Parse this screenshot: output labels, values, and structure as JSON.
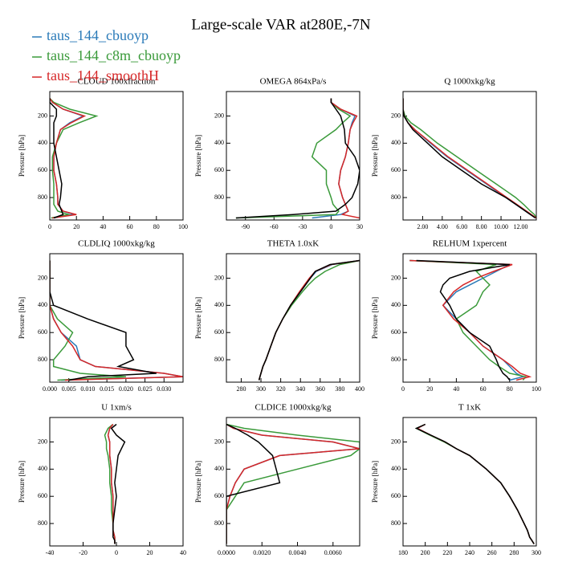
{
  "title": "Large-scale VAR at280E,-7N",
  "chart_data": [
    {
      "type": "line",
      "title": "CLOUD  100xfraction",
      "ylabel": "Pressure [hPa]",
      "y": [
        70,
        100,
        150,
        200,
        250,
        300,
        400,
        500,
        600,
        700,
        800,
        850,
        900,
        925,
        950
      ],
      "ylim": [
        965,
        20
      ],
      "yticks": [
        200,
        400,
        600,
        800
      ],
      "xlim": [
        0,
        100
      ],
      "xticks": [
        0,
        20,
        40,
        60,
        80,
        100
      ],
      "series": [
        {
          "name": "taus_144_cbuoyp",
          "color": "#2a7ab8",
          "values": [
            0,
            2,
            10,
            25,
            15,
            8,
            5,
            3,
            3,
            5,
            6,
            6,
            10,
            18,
            2
          ]
        },
        {
          "name": "taus_144_c8m_cbuoyp",
          "color": "#3a9a3a",
          "values": [
            0,
            3,
            15,
            35,
            22,
            10,
            5,
            2,
            2,
            3,
            3,
            3,
            6,
            14,
            1
          ]
        },
        {
          "name": "taus_144_smoothH",
          "color": "#d62728",
          "values": [
            0,
            2,
            10,
            26,
            16,
            8,
            5,
            3,
            3,
            5,
            6,
            6,
            10,
            20,
            2
          ]
        },
        {
          "color": "#000000",
          "values": [
            0,
            0,
            5,
            5,
            3,
            3,
            3,
            5,
            7,
            9,
            8,
            7,
            9,
            10,
            3
          ]
        }
      ]
    },
    {
      "type": "line",
      "title": "OMEGA  864xPa/s",
      "ylabel": "Pressure [hPa]",
      "y": [
        70,
        100,
        150,
        200,
        250,
        300,
        400,
        500,
        600,
        700,
        800,
        850,
        900,
        925,
        950
      ],
      "ylim": [
        965,
        20
      ],
      "yticks": [
        200,
        400,
        600,
        800
      ],
      "xlim": [
        -110,
        30
      ],
      "xticks": [
        -90,
        -60,
        -30,
        0,
        30
      ],
      "series": [
        {
          "color": "#2a7ab8",
          "values": [
            0,
            0,
            10,
            25,
            22,
            20,
            18,
            15,
            10,
            8,
            12,
            15,
            18,
            10,
            -20
          ]
        },
        {
          "color": "#3a9a3a",
          "values": [
            0,
            0,
            8,
            20,
            12,
            5,
            -15,
            -20,
            -5,
            -5,
            0,
            2,
            8,
            5,
            -100
          ]
        },
        {
          "color": "#d62728",
          "values": [
            0,
            0,
            10,
            27,
            23,
            20,
            18,
            15,
            10,
            8,
            12,
            15,
            18,
            12,
            30
          ]
        },
        {
          "color": "#000000",
          "values": [
            0,
            0,
            5,
            10,
            12,
            14,
            15,
            25,
            30,
            28,
            22,
            15,
            5,
            -40,
            -100
          ]
        }
      ]
    },
    {
      "type": "line",
      "title": "Q  1000xkg/kg",
      "ylabel": "Pressure [hPa]",
      "y": [
        70,
        100,
        150,
        200,
        250,
        300,
        400,
        500,
        600,
        700,
        800,
        850,
        900,
        925,
        950
      ],
      "ylim": [
        965,
        20
      ],
      "yticks": [
        200,
        400,
        600,
        800
      ],
      "xlim": [
        0,
        13.6
      ],
      "xticks": [
        {
          "value": 2,
          "label": "2.00"
        },
        {
          "value": 4,
          "label": "4.00"
        },
        {
          "value": 6,
          "label": "6.00"
        },
        {
          "value": 8,
          "label": "8.00"
        },
        {
          "value": 10,
          "label": "10.00"
        },
        {
          "value": 12,
          "label": "12.00"
        }
      ],
      "series": [
        {
          "color": "#2a7ab8",
          "values": [
            0,
            0,
            0,
            0.1,
            0.5,
            1.2,
            2.8,
            4.5,
            6.5,
            8.5,
            10.5,
            11.5,
            12.5,
            13,
            13.6
          ]
        },
        {
          "color": "#3a9a3a",
          "values": [
            0,
            0,
            0,
            0.2,
            0.8,
            1.8,
            3.5,
            5.5,
            7.5,
            9.5,
            11.5,
            12.3,
            13,
            13.4,
            13.6
          ]
        },
        {
          "color": "#d62728",
          "values": [
            0,
            0,
            0,
            0.1,
            0.5,
            1.2,
            2.9,
            4.6,
            6.6,
            8.6,
            10.6,
            11.6,
            12.6,
            13.1,
            13.6
          ]
        },
        {
          "color": "#000000",
          "values": [
            0,
            0,
            0,
            0.1,
            0.5,
            1,
            2.5,
            4,
            6,
            8,
            10.5,
            11.5,
            12.5,
            13,
            13.5
          ]
        }
      ]
    },
    {
      "type": "line",
      "title": "CLDLIQ  1000xkg/kg",
      "ylabel": "Pressure [hPa]",
      "y": [
        70,
        100,
        150,
        200,
        250,
        300,
        400,
        500,
        600,
        700,
        800,
        850,
        900,
        925,
        950
      ],
      "ylim": [
        965,
        20
      ],
      "yticks": [
        200,
        400,
        600,
        800
      ],
      "xlim": [
        0,
        0.035
      ],
      "xticks": [
        {
          "value": 0,
          "label": "0.000"
        },
        {
          "value": 0.005,
          "label": "0.005"
        },
        {
          "value": 0.01,
          "label": "0.010"
        },
        {
          "value": 0.015,
          "label": "0.015"
        },
        {
          "value": 0.02,
          "label": "0.020"
        },
        {
          "value": 0.025,
          "label": "0.025"
        },
        {
          "value": 0.03,
          "label": "0.030"
        }
      ],
      "series": [
        {
          "color": "#2a7ab8",
          "values": [
            0,
            0,
            0,
            0,
            0,
            0,
            0,
            0.001,
            0.003,
            0.007,
            0.008,
            0.012,
            0.03,
            0.035,
            0.003
          ]
        },
        {
          "color": "#3a9a3a",
          "values": [
            0,
            0,
            0,
            0,
            0,
            0,
            0,
            0.002,
            0.006,
            0.004,
            0.001,
            0.001,
            0.008,
            0.02,
            0.002
          ]
        },
        {
          "color": "#d62728",
          "values": [
            0,
            0,
            0,
            0,
            0,
            0,
            0,
            0.001,
            0.003,
            0.006,
            0.008,
            0.012,
            0.03,
            0.035,
            0.004
          ]
        },
        {
          "color": "#000000",
          "values": [
            0,
            0,
            0,
            0,
            0,
            0,
            0.001,
            0.01,
            0.02,
            0.02,
            0.022,
            0.018,
            0.028,
            0.01,
            0.005
          ]
        }
      ]
    },
    {
      "type": "line",
      "title": "THETA  1.0xK",
      "ylabel": "Pressure [hPa]",
      "y": [
        70,
        100,
        150,
        200,
        250,
        300,
        400,
        500,
        600,
        700,
        800,
        850,
        900,
        925,
        950
      ],
      "ylim": [
        965,
        20
      ],
      "yticks": [
        200,
        400,
        600,
        800
      ],
      "xlim": [
        265,
        400
      ],
      "xticks": [
        280,
        300,
        320,
        340,
        360,
        380,
        400
      ],
      "series": [
        {
          "color": "#2a7ab8",
          "values": [
            400,
            372,
            356,
            350,
            345,
            340,
            330,
            322,
            315,
            310,
            305,
            302,
            300,
            299,
            298
          ]
        },
        {
          "color": "#3a9a3a",
          "values": [
            400,
            380,
            365,
            355,
            348,
            342,
            331,
            322,
            315,
            310,
            305,
            302,
            300,
            299,
            298
          ]
        },
        {
          "color": "#d62728",
          "values": [
            400,
            371,
            355,
            349,
            344,
            339,
            330,
            322,
            315,
            310,
            305,
            302,
            300,
            299,
            298
          ]
        },
        {
          "color": "#000000",
          "values": [
            400,
            370,
            355,
            350,
            345,
            340,
            330,
            322,
            315,
            310,
            305,
            302,
            300,
            299,
            298
          ]
        }
      ]
    },
    {
      "type": "line",
      "title": "RELHUM  1xpercent",
      "ylabel": "Pressure [hPa]",
      "y": [
        70,
        100,
        150,
        200,
        250,
        300,
        400,
        500,
        600,
        700,
        800,
        850,
        900,
        925,
        950
      ],
      "ylim": [
        965,
        20
      ],
      "yticks": [
        200,
        400,
        600,
        800
      ],
      "xlim": [
        0,
        100
      ],
      "xticks": [
        0,
        20,
        40,
        60,
        80,
        100
      ],
      "series": [
        {
          "color": "#2a7ab8",
          "values": [
            5,
            80,
            70,
            60,
            50,
            40,
            30,
            40,
            50,
            60,
            75,
            80,
            85,
            90,
            80
          ]
        },
        {
          "color": "#3a9a3a",
          "values": [
            5,
            70,
            55,
            60,
            65,
            60,
            55,
            40,
            45,
            55,
            65,
            72,
            80,
            92,
            90
          ]
        },
        {
          "color": "#d62728",
          "values": [
            5,
            82,
            68,
            55,
            45,
            38,
            30,
            38,
            50,
            60,
            75,
            82,
            88,
            95,
            85
          ]
        },
        {
          "color": "#000000",
          "values": [
            10,
            80,
            50,
            35,
            30,
            28,
            35,
            40,
            50,
            65,
            70,
            72,
            75,
            78,
            80
          ]
        }
      ]
    },
    {
      "type": "line",
      "title": "U  1xm/s",
      "ylabel": "Pressure [hPa]",
      "y": [
        70,
        100,
        150,
        200,
        250,
        300,
        400,
        500,
        600,
        700,
        800,
        850,
        900,
        925,
        950
      ],
      "ylim": [
        965,
        20
      ],
      "yticks": [
        200,
        400,
        600,
        800
      ],
      "xlim": [
        -40,
        40
      ],
      "xticks": [
        -40,
        -20,
        0,
        20,
        40
      ],
      "series": [
        {
          "color": "#2a7ab8",
          "values": [
            -2,
            -4,
            -5,
            -4,
            -4,
            -4,
            -3,
            -3,
            -2,
            -2,
            -2,
            -2,
            -1,
            -1,
            -1
          ]
        },
        {
          "color": "#3a9a3a",
          "values": [
            -2,
            -5,
            -7,
            -6,
            -6,
            -5,
            -4,
            -4,
            -3,
            -3,
            -2,
            -2,
            -1,
            -1,
            -1
          ]
        },
        {
          "color": "#d62728",
          "values": [
            -2,
            -4,
            -5,
            -4,
            -4,
            -4,
            -3,
            -3,
            -2,
            -2,
            -2,
            -2,
            -1,
            -1,
            -1
          ]
        },
        {
          "color": "#000000",
          "values": [
            0,
            -3,
            0,
            5,
            3,
            1,
            0,
            -1,
            0,
            -1,
            -2,
            -2,
            -2,
            -1,
            -1
          ]
        }
      ]
    },
    {
      "type": "line",
      "title": "CLDICE  1000xkg/kg",
      "ylabel": "Pressure [hPa]",
      "y": [
        70,
        100,
        150,
        200,
        250,
        300,
        400,
        500,
        600,
        700,
        800,
        850,
        900,
        925,
        950
      ],
      "ylim": [
        965,
        20
      ],
      "yticks": [
        200,
        400,
        600,
        800
      ],
      "xlim": [
        0,
        0.0075
      ],
      "xticks": [
        {
          "value": 0,
          "label": "0.0000"
        },
        {
          "value": 0.002,
          "label": "0.0020"
        },
        {
          "value": 0.004,
          "label": "0.0040"
        },
        {
          "value": 0.006,
          "label": "0.0060"
        }
      ],
      "series": [
        {
          "color": "#2a7ab8",
          "values": [
            0,
            0.0004,
            0.002,
            0.006,
            0.0075,
            0.003,
            0.001,
            0.0005,
            0.0002,
            0,
            0,
            0,
            0,
            0,
            0
          ]
        },
        {
          "color": "#3a9a3a",
          "values": [
            0,
            0.001,
            0.004,
            0.0075,
            0.0075,
            0.007,
            0.004,
            0.001,
            0.0005,
            0,
            0,
            0,
            0,
            0,
            0
          ]
        },
        {
          "color": "#d62728",
          "values": [
            0,
            0.0004,
            0.002,
            0.006,
            0.0075,
            0.003,
            0.001,
            0.0005,
            0.0002,
            0,
            0,
            0,
            0,
            0,
            0
          ]
        },
        {
          "color": "#000000",
          "values": [
            0,
            0.0005,
            0.0012,
            0.0018,
            0.0022,
            0.0026,
            0.0028,
            0.003,
            0,
            0,
            0,
            0,
            0,
            0,
            0
          ]
        }
      ]
    },
    {
      "type": "line",
      "title": "T  1xK",
      "ylabel": "Pressure [hPa]",
      "y": [
        70,
        100,
        150,
        200,
        250,
        300,
        400,
        500,
        600,
        700,
        800,
        850,
        900,
        925,
        950
      ],
      "ylim": [
        965,
        20
      ],
      "yticks": [
        200,
        400,
        600,
        800
      ],
      "xlim": [
        180,
        300
      ],
      "xticks": [
        180,
        200,
        220,
        240,
        260,
        280,
        300
      ],
      "series": [
        {
          "color": "#2a7ab8",
          "values": [
            200,
            193,
            205,
            218,
            228,
            240,
            255,
            268,
            276,
            283,
            289,
            292,
            294,
            296,
            298
          ]
        },
        {
          "color": "#3a9a3a",
          "values": [
            200,
            192,
            204,
            217,
            228,
            240,
            255,
            268,
            276,
            283,
            289,
            292,
            294,
            296,
            298
          ]
        },
        {
          "color": "#d62728",
          "values": [
            200,
            193,
            205,
            218,
            228,
            240,
            255,
            268,
            276,
            283,
            289,
            292,
            294,
            296,
            298
          ]
        },
        {
          "color": "#000000",
          "values": [
            200,
            192,
            205,
            218,
            228,
            240,
            255,
            268,
            276,
            283,
            289,
            292,
            294,
            296,
            298
          ]
        }
      ]
    }
  ]
}
